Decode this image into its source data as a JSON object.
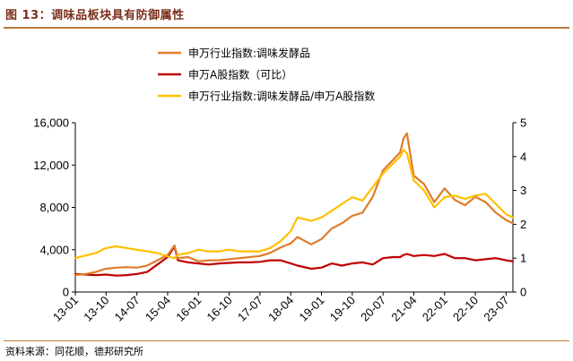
{
  "figure": {
    "title": "图 13：调味品板块具有防御属性",
    "source": "资料来源：同花顺，德邦研究所"
  },
  "colors": {
    "series_1": "#e07c2a",
    "series_2": "#c00000",
    "series_3": "#ffc000",
    "rule": "#b8793c",
    "title": "#7a2e1a"
  },
  "chart_data": {
    "type": "line",
    "title": "",
    "xlabel": "",
    "ylabel": "",
    "x_ticks": [
      "13-01",
      "13-10",
      "14-07",
      "15-04",
      "16-01",
      "16-10",
      "17-07",
      "18-04",
      "19-01",
      "19-10",
      "20-07",
      "21-04",
      "22-01",
      "22-10",
      "23-07"
    ],
    "y_left_ticks": [
      "0",
      "4,000",
      "8,000",
      "12,000",
      "16,000"
    ],
    "y_right_ticks": [
      "0",
      "1",
      "2",
      "3",
      "4",
      "5"
    ],
    "ylim_left": [
      0,
      16000
    ],
    "ylim_right": [
      0,
      5
    ],
    "grid": false,
    "legend_position": "top",
    "series": [
      {
        "name": "申万行业指数:调味发酵品",
        "axis": "left",
        "x": [
          "13-01",
          "13-04",
          "13-07",
          "13-10",
          "14-01",
          "14-04",
          "14-07",
          "14-10",
          "15-01",
          "15-04",
          "15-06",
          "15-07",
          "15-10",
          "16-01",
          "16-04",
          "16-07",
          "16-10",
          "17-01",
          "17-04",
          "17-07",
          "17-10",
          "18-01",
          "18-04",
          "18-06",
          "18-10",
          "19-01",
          "19-04",
          "19-07",
          "19-10",
          "20-01",
          "20-04",
          "20-07",
          "20-10",
          "20-12",
          "21-01",
          "21-02",
          "21-04",
          "21-07",
          "21-10",
          "22-01",
          "22-04",
          "22-07",
          "22-10",
          "23-01",
          "23-04",
          "23-07",
          "23-09"
        ],
        "values": [
          1600,
          1700,
          1900,
          2200,
          2300,
          2350,
          2300,
          2500,
          3000,
          3500,
          4400,
          3200,
          3300,
          2900,
          3000,
          3000,
          3100,
          3200,
          3300,
          3400,
          3700,
          4200,
          4600,
          5200,
          4500,
          5000,
          6000,
          6500,
          7200,
          7500,
          9000,
          11500,
          12500,
          13200,
          14500,
          15000,
          11000,
          10200,
          8500,
          9800,
          8700,
          8200,
          9000,
          8500,
          7500,
          6800,
          6500
        ]
      },
      {
        "name": "申万A股指数（可比）",
        "axis": "left",
        "x": [
          "13-01",
          "13-04",
          "13-07",
          "13-10",
          "14-01",
          "14-04",
          "14-07",
          "14-10",
          "15-01",
          "15-04",
          "15-06",
          "15-07",
          "15-10",
          "16-01",
          "16-04",
          "16-07",
          "16-10",
          "17-01",
          "17-04",
          "17-07",
          "17-10",
          "18-01",
          "18-04",
          "18-06",
          "18-10",
          "19-01",
          "19-04",
          "19-07",
          "19-10",
          "20-01",
          "20-04",
          "20-07",
          "20-10",
          "20-12",
          "21-01",
          "21-02",
          "21-04",
          "21-07",
          "21-10",
          "22-01",
          "22-04",
          "22-07",
          "22-10",
          "23-01",
          "23-04",
          "23-07",
          "23-09"
        ],
        "values": [
          1700,
          1650,
          1600,
          1650,
          1550,
          1600,
          1700,
          1900,
          2600,
          3300,
          4300,
          3000,
          2800,
          2700,
          2600,
          2700,
          2750,
          2800,
          2800,
          2850,
          3000,
          3000,
          2700,
          2500,
          2200,
          2300,
          2700,
          2500,
          2700,
          2800,
          2600,
          3200,
          3300,
          3300,
          3500,
          3600,
          3400,
          3500,
          3400,
          3600,
          3200,
          3200,
          3000,
          3100,
          3200,
          3000,
          2900
        ]
      },
      {
        "name": "申万行业指数:调味发酵品/申万A股指数",
        "axis": "right",
        "x": [
          "13-01",
          "13-04",
          "13-07",
          "13-10",
          "14-01",
          "14-04",
          "14-07",
          "14-10",
          "15-01",
          "15-04",
          "15-06",
          "15-07",
          "15-10",
          "16-01",
          "16-04",
          "16-07",
          "16-10",
          "17-01",
          "17-04",
          "17-07",
          "17-10",
          "18-01",
          "18-04",
          "18-06",
          "18-10",
          "19-01",
          "19-04",
          "19-07",
          "19-10",
          "20-01",
          "20-04",
          "20-07",
          "20-10",
          "20-12",
          "21-01",
          "21-02",
          "21-04",
          "21-07",
          "21-10",
          "22-01",
          "22-04",
          "22-07",
          "22-10",
          "23-01",
          "23-04",
          "23-07",
          "23-09"
        ],
        "values": [
          1.0,
          1.08,
          1.15,
          1.3,
          1.35,
          1.3,
          1.25,
          1.2,
          1.15,
          1.05,
          1.0,
          1.1,
          1.15,
          1.25,
          1.2,
          1.2,
          1.25,
          1.2,
          1.2,
          1.2,
          1.3,
          1.5,
          1.8,
          2.2,
          2.1,
          2.2,
          2.4,
          2.6,
          2.8,
          2.7,
          3.1,
          3.5,
          3.8,
          4.0,
          4.2,
          4.1,
          3.3,
          3.0,
          2.5,
          2.8,
          2.85,
          2.75,
          2.85,
          2.9,
          2.6,
          2.3,
          2.2
        ]
      }
    ]
  }
}
